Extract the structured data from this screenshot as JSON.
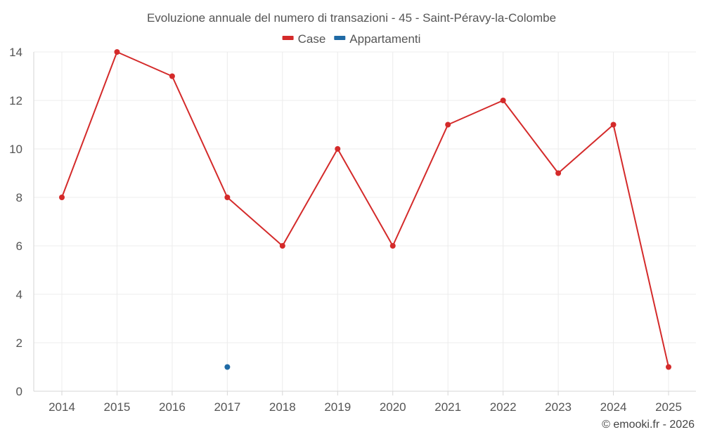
{
  "chart_data": {
    "type": "line",
    "title": "Evoluzione annuale del numero di transazioni - 45 - Saint-Péravy-la-Colombe",
    "categories": [
      "2014",
      "2015",
      "2016",
      "2017",
      "2018",
      "2019",
      "2020",
      "2021",
      "2022",
      "2023",
      "2024",
      "2025"
    ],
    "ylim": [
      0,
      14
    ],
    "yticks": [
      0,
      2,
      4,
      6,
      8,
      10,
      12,
      14
    ],
    "grid": true,
    "legend_position": "top-center",
    "series": [
      {
        "name": "Case",
        "color": "#d42a2a",
        "values": [
          8,
          14,
          13,
          8,
          6,
          10,
          6,
          11,
          12,
          9,
          11,
          1
        ]
      },
      {
        "name": "Appartamenti",
        "color": "#1f6aa5",
        "values": [
          null,
          null,
          null,
          1,
          null,
          null,
          null,
          null,
          null,
          null,
          null,
          null
        ]
      }
    ],
    "credit": "© emooki.fr - 2026"
  }
}
